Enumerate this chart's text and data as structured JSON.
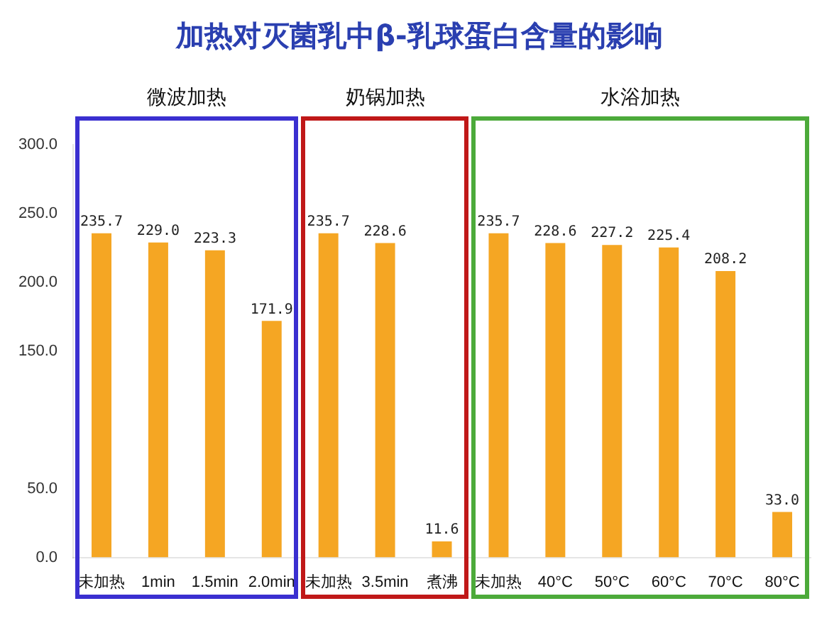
{
  "chart_data": {
    "type": "bar",
    "title": "加热对灭菌乳中β-乳球蛋白含量的影响",
    "annotations": [
      "微波加热",
      "奶锅加热",
      "水浴加热"
    ],
    "categories": [
      "未加热",
      "1min",
      "1.5min",
      "2.0min",
      "未加热",
      "3.5min",
      "煮沸",
      "未加热",
      "40°C",
      "50°C",
      "60°C",
      "70°C",
      "80°C"
    ],
    "values": [
      235.7,
      229.0,
      223.3,
      171.9,
      235.7,
      228.6,
      11.6,
      235.7,
      228.6,
      227.2,
      225.4,
      208.2,
      33.0
    ],
    "color": "#f5a623",
    "ylim": [
      0,
      300
    ],
    "yticks": [
      {
        "value": 0,
        "label": "0.0"
      },
      {
        "value": 50,
        "label": "50.0"
      },
      {
        "value": 150,
        "label": "150.0"
      },
      {
        "value": 200,
        "label": "200.0"
      },
      {
        "value": 250,
        "label": "250.0"
      },
      {
        "value": 300,
        "label": "300.0"
      }
    ],
    "value_labels": [
      "235.7",
      "229.0",
      "223.3",
      "171.9",
      "235.7",
      "228.6",
      "11.6",
      "235.7",
      "228.6",
      "227.2",
      "225.4",
      "208.2",
      "33.0"
    ],
    "grid": false,
    "legend": false
  }
}
